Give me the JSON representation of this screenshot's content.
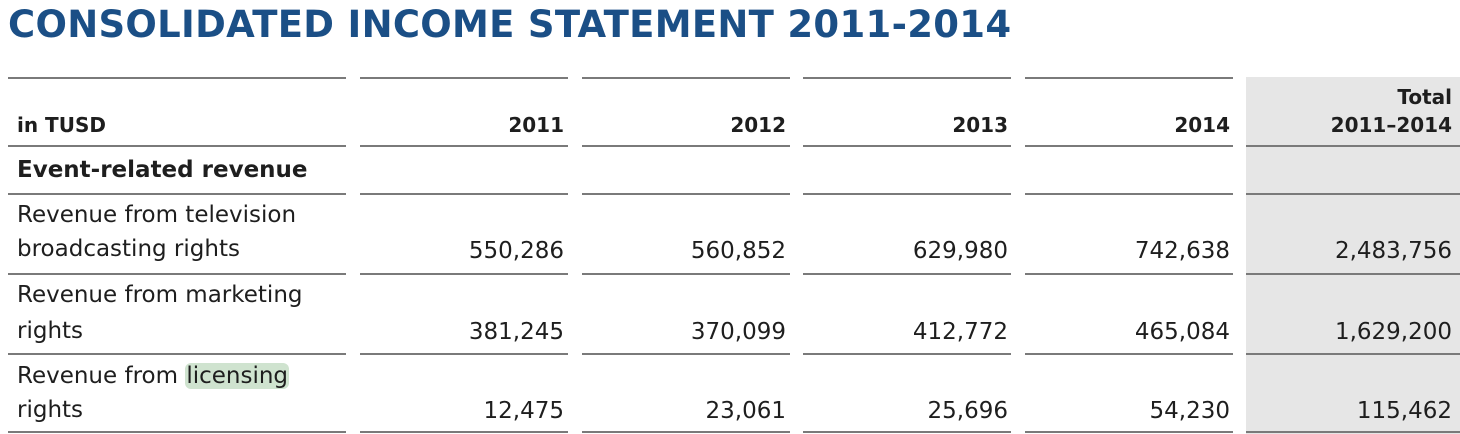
{
  "title": "CONSOLIDATED INCOME STATEMENT 2011-2014",
  "table": {
    "unit_label": "in TUSD",
    "columns": [
      "2011",
      "2012",
      "2013",
      "2014"
    ],
    "total_header_line1": "Total",
    "total_header_line2": "2011–2014",
    "section_header": "Event-related revenue",
    "rows": [
      {
        "label_line1": "Revenue from television",
        "label_line2": "broadcasting rights",
        "values": [
          "550,286",
          "560,852",
          "629,980",
          "742,638"
        ],
        "total": "2,483,756"
      },
      {
        "label_line1": "Revenue from marketing",
        "label_line2": "rights",
        "values": [
          "381,245",
          "370,099",
          "412,772",
          "465,084"
        ],
        "total": "1,629,200"
      },
      {
        "label_line1_before": "Revenue from ",
        "label_line1_highlight": "licensing",
        "label_line2": "rights",
        "values": [
          "12,475",
          "23,061",
          "25,696",
          "54,230"
        ],
        "total": "115,462"
      }
    ]
  },
  "colors": {
    "title": "#1b4f86",
    "total_column_bg": "#e6e6e6",
    "rule": "#7a7a7a",
    "highlight": "#cfe3cf"
  }
}
